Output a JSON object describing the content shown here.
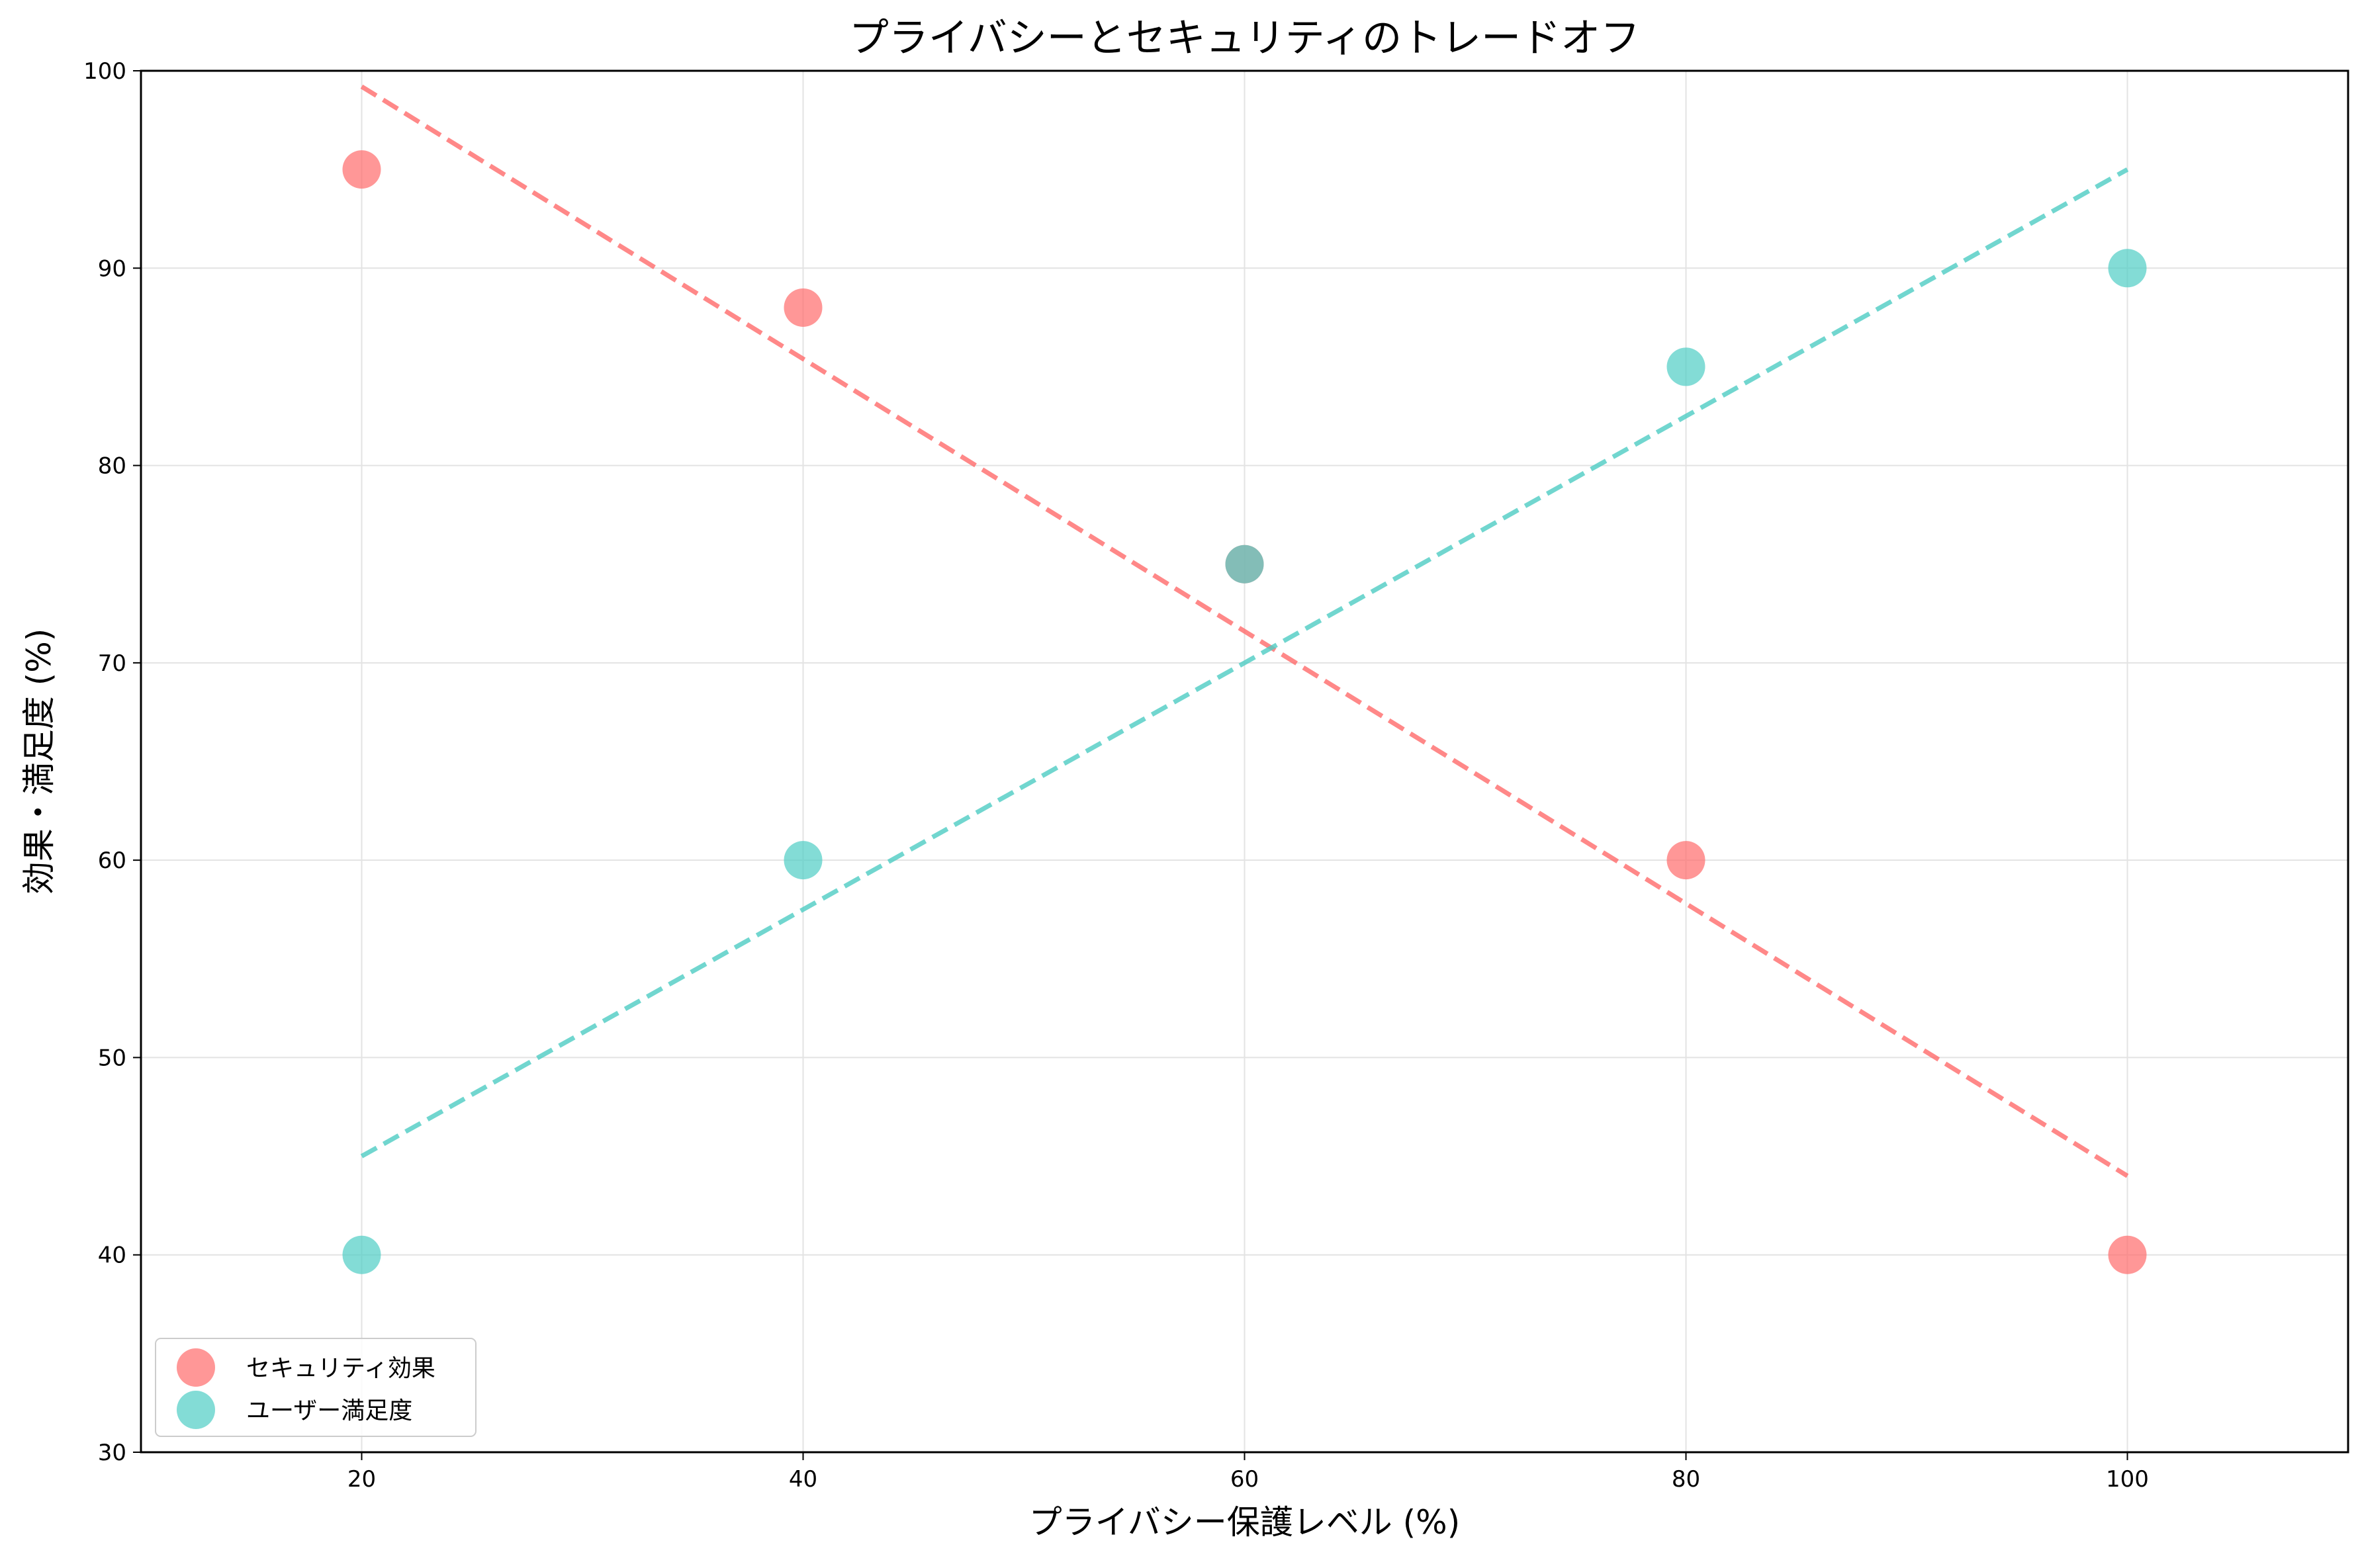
{
  "chart_data": {
    "type": "scatter",
    "title": "プライバシーとセキュリティのトレードオフ",
    "xlabel": "プライバシー保護レベル (%)",
    "ylabel": "効果・満足度 (%)",
    "xlim": [
      10,
      110
    ],
    "ylim": [
      30,
      100
    ],
    "xticks": [
      20,
      40,
      60,
      80,
      100
    ],
    "yticks": [
      30,
      40,
      50,
      60,
      70,
      80,
      90,
      100
    ],
    "grid": true,
    "legend_position": "lower-left",
    "series": [
      {
        "name": "セキュリティ効果",
        "color": "#ff6b6b",
        "x": [
          20,
          40,
          60,
          80,
          100
        ],
        "y": [
          95,
          88,
          75,
          60,
          40
        ],
        "trendline": {
          "style": "dashed",
          "x": [
            20,
            100
          ],
          "y": [
            99.2,
            44.0
          ]
        }
      },
      {
        "name": "ユーザー満足度",
        "color": "#4ecdc4",
        "x": [
          20,
          40,
          60,
          80,
          100
        ],
        "y": [
          40,
          60,
          75,
          85,
          90
        ],
        "trendline": {
          "style": "dashed",
          "x": [
            20,
            100
          ],
          "y": [
            45.0,
            95.0
          ]
        }
      }
    ]
  }
}
